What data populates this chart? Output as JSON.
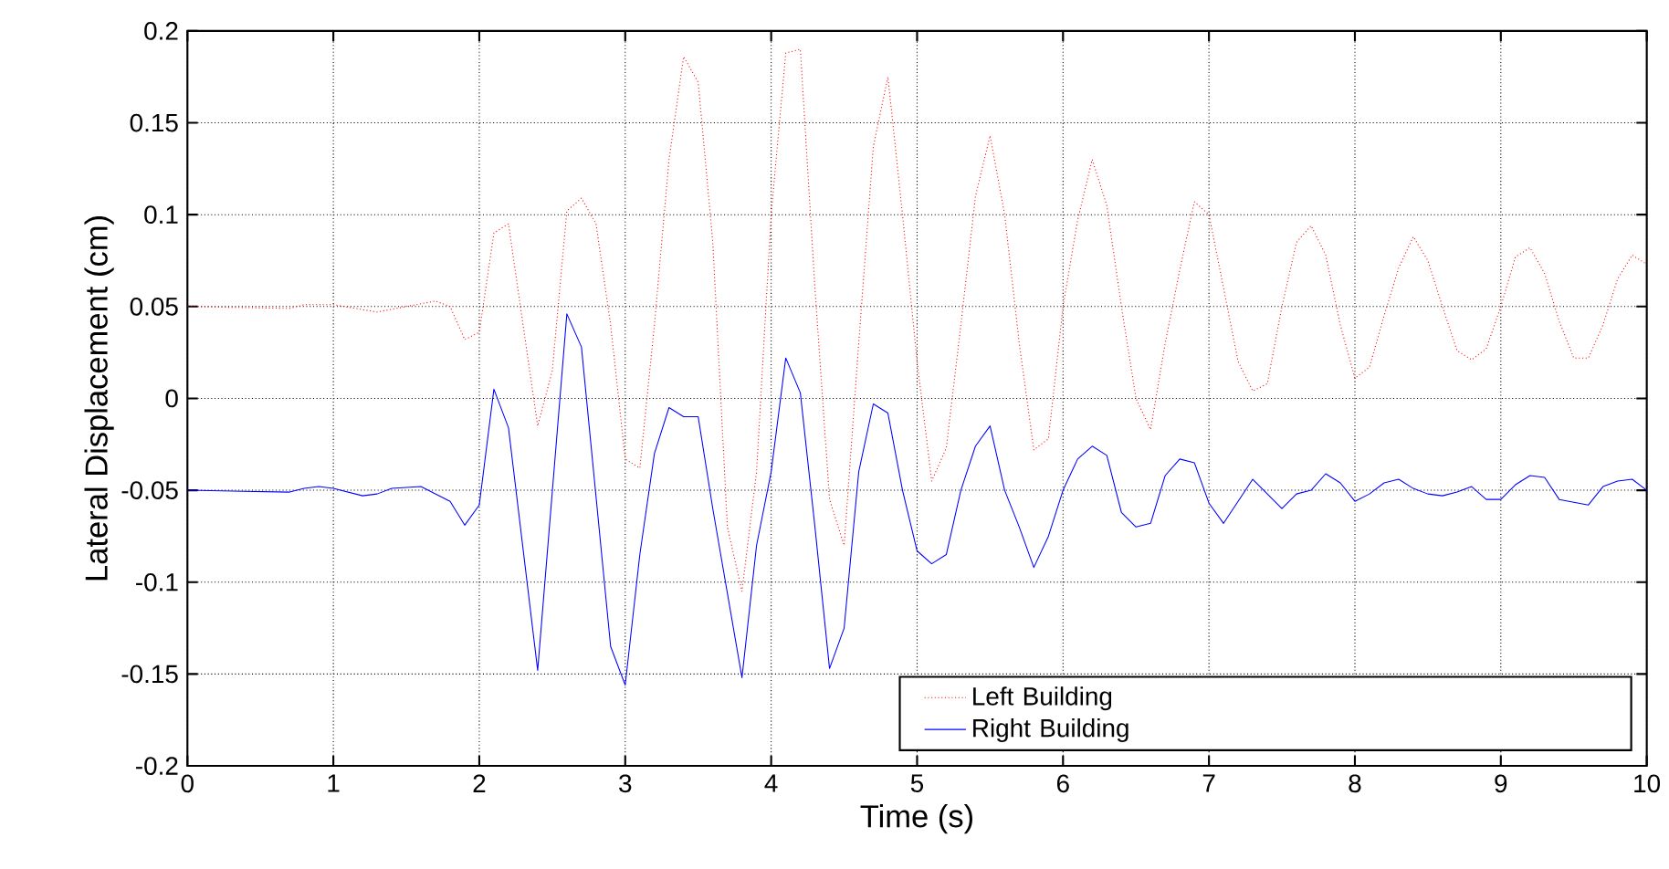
{
  "chart_data": {
    "type": "line",
    "xlabel": "Time (s)",
    "ylabel": "Lateral Displacement (cm)",
    "xlim": [
      0,
      10
    ],
    "ylim": [
      -0.2,
      0.2
    ],
    "xticks": [
      0,
      1,
      2,
      3,
      4,
      5,
      6,
      7,
      8,
      9,
      10
    ],
    "yticks": [
      -0.2,
      -0.15,
      -0.1,
      -0.05,
      0,
      0.05,
      0.1,
      0.15,
      0.2
    ],
    "grid": true,
    "legend": "bottom right",
    "series": [
      {
        "name": "Left Building",
        "color": "#ff0000",
        "line_style": "dotted",
        "x": [
          0,
          0.7,
          0.8,
          1.0,
          1.3,
          1.5,
          1.7,
          1.8,
          1.9,
          2.0,
          2.1,
          2.2,
          2.4,
          2.5,
          2.6,
          2.7,
          2.8,
          2.9,
          3.0,
          3.1,
          3.2,
          3.3,
          3.4,
          3.5,
          3.6,
          3.7,
          3.8,
          3.9,
          4.0,
          4.1,
          4.2,
          4.3,
          4.4,
          4.5,
          4.6,
          4.7,
          4.8,
          4.9,
          5.0,
          5.1,
          5.2,
          5.3,
          5.4,
          5.5,
          5.6,
          5.7,
          5.8,
          5.9,
          6.0,
          6.1,
          6.2,
          6.3,
          6.4,
          6.5,
          6.6,
          6.7,
          6.8,
          6.9,
          7.0,
          7.1,
          7.2,
          7.3,
          7.4,
          7.5,
          7.6,
          7.7,
          7.8,
          7.9,
          8.0,
          8.1,
          8.2,
          8.3,
          8.4,
          8.5,
          8.6,
          8.7,
          8.8,
          8.9,
          9.0,
          9.1,
          9.2,
          9.3,
          9.4,
          9.5,
          9.6,
          9.7,
          9.8,
          9.9,
          10.0
        ],
        "values": [
          0.05,
          0.049,
          0.051,
          0.051,
          0.047,
          0.05,
          0.053,
          0.05,
          0.032,
          0.036,
          0.09,
          0.095,
          -0.015,
          0.015,
          0.102,
          0.109,
          0.095,
          0.04,
          -0.033,
          -0.038,
          0.04,
          0.13,
          0.186,
          0.172,
          0.085,
          -0.07,
          -0.105,
          -0.04,
          0.1,
          0.188,
          0.19,
          0.06,
          -0.055,
          -0.08,
          0.03,
          0.137,
          0.175,
          0.1,
          0.02,
          -0.045,
          -0.027,
          0.04,
          0.11,
          0.143,
          0.1,
          0.03,
          -0.028,
          -0.022,
          0.05,
          0.097,
          0.13,
          0.105,
          0.05,
          0.0,
          -0.017,
          0.03,
          0.07,
          0.107,
          0.1,
          0.06,
          0.02,
          0.004,
          0.008,
          0.05,
          0.085,
          0.094,
          0.078,
          0.04,
          0.011,
          0.017,
          0.045,
          0.071,
          0.088,
          0.075,
          0.05,
          0.026,
          0.021,
          0.027,
          0.05,
          0.077,
          0.082,
          0.068,
          0.042,
          0.022,
          0.022,
          0.04,
          0.065,
          0.078,
          0.073
        ]
      },
      {
        "name": "Right Building",
        "color": "#0000ff",
        "line_style": "solid",
        "x": [
          0,
          0.7,
          0.8,
          0.9,
          1.0,
          1.2,
          1.3,
          1.4,
          1.6,
          1.8,
          1.9,
          2.0,
          2.1,
          2.2,
          2.4,
          2.6,
          2.7,
          2.9,
          3.0,
          3.1,
          3.2,
          3.3,
          3.4,
          3.5,
          3.6,
          3.8,
          3.9,
          4.0,
          4.1,
          4.2,
          4.3,
          4.4,
          4.5,
          4.6,
          4.7,
          4.8,
          4.9,
          5.0,
          5.1,
          5.2,
          5.3,
          5.4,
          5.5,
          5.6,
          5.7,
          5.8,
          5.9,
          6.0,
          6.1,
          6.2,
          6.3,
          6.4,
          6.5,
          6.6,
          6.7,
          6.8,
          6.9,
          7.0,
          7.1,
          7.3,
          7.5,
          7.6,
          7.7,
          7.8,
          7.9,
          8.0,
          8.1,
          8.2,
          8.3,
          8.4,
          8.5,
          8.6,
          8.7,
          8.8,
          8.9,
          9.0,
          9.1,
          9.2,
          9.3,
          9.4,
          9.6,
          9.7,
          9.8,
          9.9,
          10.0
        ],
        "values": [
          -0.05,
          -0.051,
          -0.049,
          -0.048,
          -0.049,
          -0.053,
          -0.052,
          -0.049,
          -0.048,
          -0.056,
          -0.069,
          -0.058,
          0.005,
          -0.016,
          -0.148,
          0.046,
          0.028,
          -0.135,
          -0.156,
          -0.085,
          -0.03,
          -0.005,
          -0.01,
          -0.01,
          -0.06,
          -0.152,
          -0.08,
          -0.04,
          0.022,
          0.003,
          -0.07,
          -0.147,
          -0.125,
          -0.04,
          -0.003,
          -0.008,
          -0.05,
          -0.083,
          -0.09,
          -0.085,
          -0.05,
          -0.026,
          -0.015,
          -0.05,
          -0.07,
          -0.092,
          -0.075,
          -0.05,
          -0.033,
          -0.026,
          -0.031,
          -0.062,
          -0.07,
          -0.068,
          -0.042,
          -0.033,
          -0.035,
          -0.057,
          -0.068,
          -0.044,
          -0.06,
          -0.052,
          -0.05,
          -0.041,
          -0.046,
          -0.056,
          -0.052,
          -0.046,
          -0.044,
          -0.049,
          -0.052,
          -0.053,
          -0.051,
          -0.048,
          -0.055,
          -0.055,
          -0.047,
          -0.042,
          -0.043,
          -0.055,
          -0.058,
          -0.048,
          -0.045,
          -0.044,
          -0.05
        ]
      }
    ]
  }
}
